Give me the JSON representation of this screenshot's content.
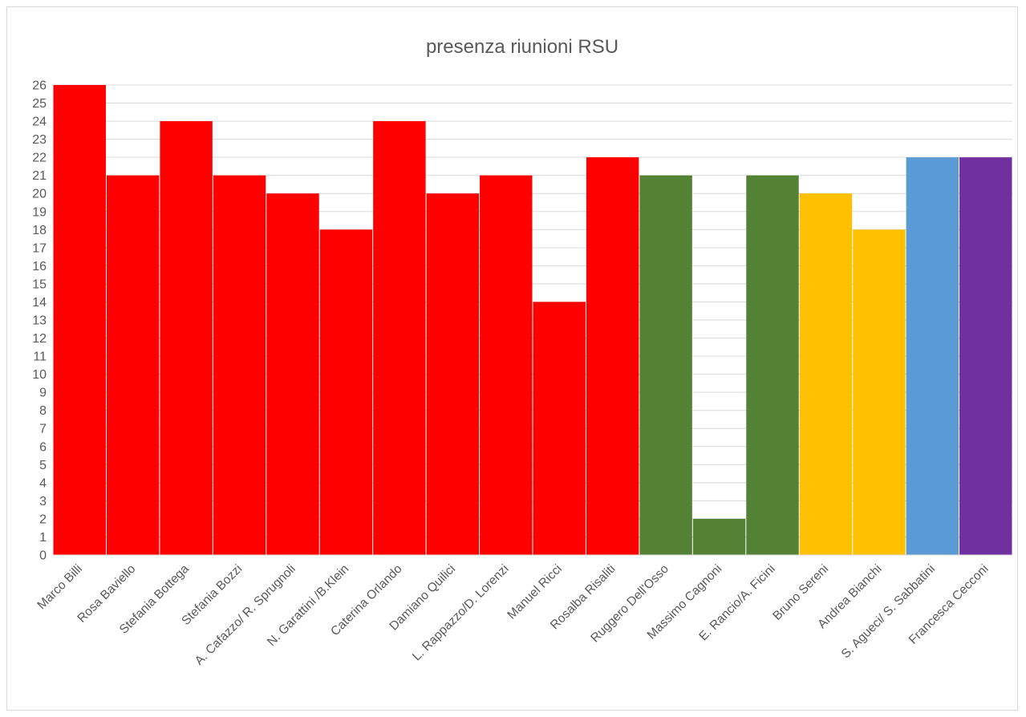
{
  "chart_data": {
    "type": "bar",
    "title": "presenza riunioni RSU",
    "xlabel": "",
    "ylabel": "",
    "ylim": [
      0,
      26
    ],
    "yticks": [
      0,
      1,
      2,
      3,
      4,
      5,
      6,
      7,
      8,
      9,
      10,
      11,
      12,
      13,
      14,
      15,
      16,
      17,
      18,
      19,
      20,
      21,
      22,
      23,
      24,
      25,
      26
    ],
    "grid": true,
    "legend": "none",
    "categories": [
      "Marco Billi",
      "Rosa Baviello",
      "Stefania Bottega",
      "Stefania Bozzi",
      "A. Cafazzo/ R. Sprugnoli",
      "N. Garattini /B.Klein",
      "Caterina Orlando",
      "Damiano Quilici",
      "L. Rappazzo/D. Lorenzi",
      "Manuel Ricci",
      "Rosalba Risaliti",
      "Ruggero Dell'Osso",
      "Massimo Cagnoni",
      "E. Rancio/A. Ficini",
      "Bruno Sereni",
      "Andrea Bianchi",
      "S. Agueci/ S. Sabbatini",
      "Francesca Cecconi"
    ],
    "values": [
      26,
      21,
      24,
      21,
      20,
      18,
      24,
      20,
      21,
      14,
      22,
      21,
      2,
      21,
      20,
      18,
      22,
      22
    ],
    "colors": [
      "#ff0000",
      "#ff0000",
      "#ff0000",
      "#ff0000",
      "#ff0000",
      "#ff0000",
      "#ff0000",
      "#ff0000",
      "#ff0000",
      "#ff0000",
      "#ff0000",
      "#548235",
      "#548235",
      "#548235",
      "#ffc000",
      "#ffc000",
      "#5b9bd5",
      "#7030a0"
    ]
  }
}
